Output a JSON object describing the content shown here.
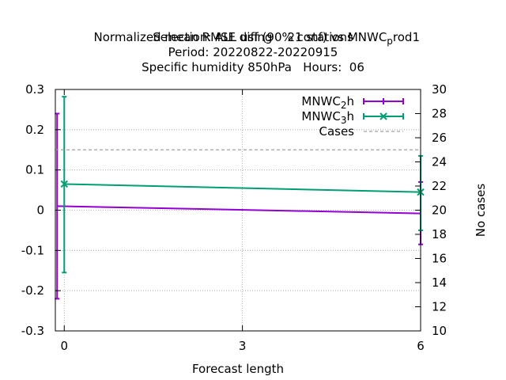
{
  "title_lines": [
    "Normalized mean RMSE diff (90% conf) vs MNWC_prod1",
    "Selection: ALL using    21 stations",
    "Period: 20220822-20220915",
    "Specific humidity 850hPa   Hours:  06"
  ],
  "chart_data": {
    "type": "line",
    "title": "Normalized mean RMSE diff (90% conf) vs MNWC_prod1",
    "xlabel": "Forecast length",
    "ylabel": "",
    "y2label": "No cases",
    "xlim": [
      -0.15,
      6
    ],
    "ylim": [
      -0.3,
      0.3
    ],
    "y2lim": [
      10,
      30
    ],
    "xticks": [
      "0",
      "3",
      "6"
    ],
    "xtick_values": [
      0,
      3,
      6
    ],
    "yticks": [
      "-0.3",
      "-0.2",
      "-0.1",
      "0",
      "0.1",
      "0.2",
      "0.3"
    ],
    "ytick_values": [
      -0.3,
      -0.2,
      -0.1,
      0,
      0.1,
      0.2,
      0.3
    ],
    "y2ticks": [
      "10",
      "12",
      "14",
      "16",
      "18",
      "20",
      "22",
      "24",
      "26",
      "28",
      "30"
    ],
    "y2tick_values": [
      10,
      12,
      14,
      16,
      18,
      20,
      22,
      24,
      26,
      28,
      30
    ],
    "grid": true,
    "legend_position": "top-right",
    "series": [
      {
        "name": "MNWC_2h",
        "legend_label": "MNWC",
        "legend_sub": "2",
        "legend_suffix": "h",
        "color": "#9400d3",
        "x": [
          -0.12,
          6
        ],
        "y": [
          0.01,
          -0.008
        ],
        "error_low": [
          -0.22,
          -0.085
        ],
        "error_high": [
          0.24,
          0.07
        ],
        "marker": "plus"
      },
      {
        "name": "MNWC_3h",
        "legend_label": "MNWC",
        "legend_sub": "3",
        "legend_suffix": "h",
        "color": "#009e73",
        "x": [
          0,
          6
        ],
        "y": [
          0.065,
          0.045
        ],
        "error_low": [
          -0.155,
          -0.05
        ],
        "error_high": [
          0.282,
          0.135
        ],
        "marker": "x"
      },
      {
        "name": "Cases",
        "legend_label": "Cases",
        "color": "#a0a0a0",
        "axis": "y2",
        "x": [
          -0.15,
          6
        ],
        "y": [
          25,
          25
        ],
        "dashed": true
      }
    ]
  }
}
